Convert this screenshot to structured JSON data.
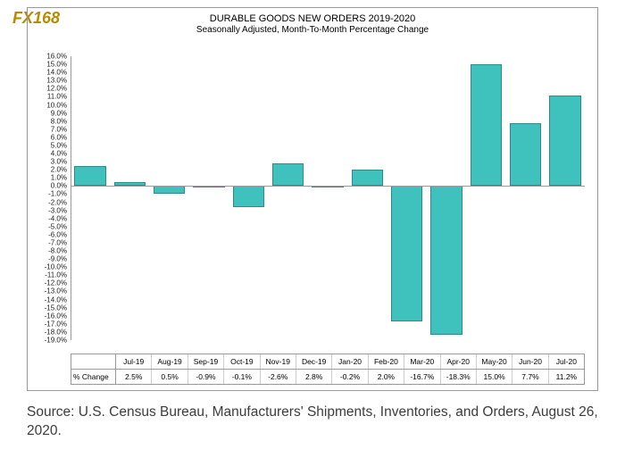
{
  "logo_text": "FX168",
  "chart": {
    "type": "bar",
    "title": "DURABLE GOODS NEW ORDERS 2019-2020",
    "subtitle": "Seasonally Adjusted,  Month-To-Month Percentage Change",
    "title_fontsize": 11,
    "subtitle_fontsize": 10,
    "categories": [
      "Jul-19",
      "Aug-19",
      "Sep-19",
      "Oct-19",
      "Nov-19",
      "Dec-19",
      "Jan-20",
      "Feb-20",
      "Mar-20",
      "Apr-20",
      "May-20",
      "Jun-20",
      "Jul-20"
    ],
    "values": [
      2.5,
      0.5,
      -0.9,
      -0.1,
      -2.6,
      2.8,
      -0.2,
      2.0,
      -16.7,
      -18.3,
      15.0,
      7.7,
      11.2
    ],
    "value_labels": [
      "2.5%",
      "0.5%",
      "-0.9%",
      "-0.1%",
      "-2.6%",
      "2.8%",
      "-0.2%",
      "2.0%",
      "-16.7%",
      "-18.3%",
      "15.0%",
      "7.7%",
      "11.2%"
    ],
    "bar_color": "#3fc1bd",
    "bar_border": "#2c8c8a",
    "ylim": [
      -19,
      16
    ],
    "ytick_step": 1,
    "ytick_format": "percent_one_decimal",
    "grid_color": "#cccccc",
    "axis_line_color": "#999999",
    "background_color": "#ffffff",
    "row_label": "% Change"
  },
  "source_text": "Source: U.S. Census Bureau, Manufacturers' Shipments, Inventories, and Orders, August 26, 2020."
}
